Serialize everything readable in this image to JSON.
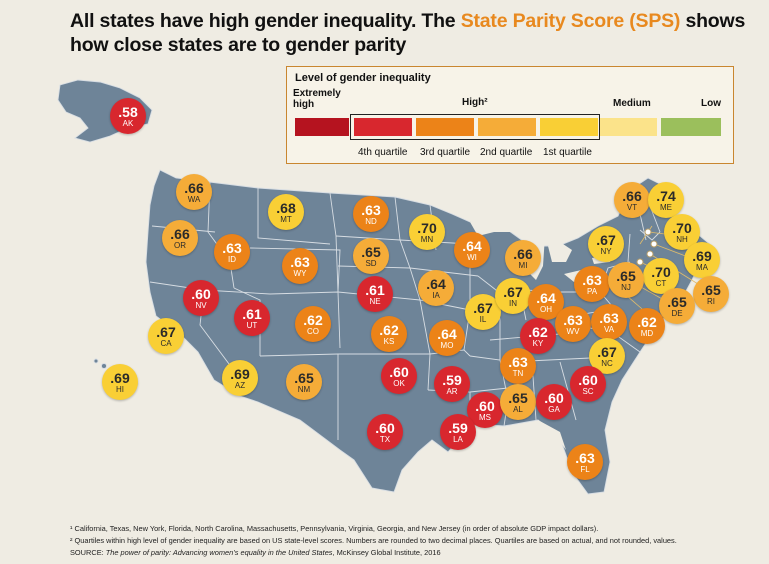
{
  "title": {
    "part1": "All states have high gender inequality. The ",
    "highlight": "State Parity Score (SPS)",
    "part2": " shows",
    "line2": "how close states are to gender parity"
  },
  "legend": {
    "title": "Level of gender inequality",
    "extremely_high": "Extremely high",
    "high": "High²",
    "medium": "Medium",
    "low": "Low",
    "quartiles": [
      "4th quartile",
      "3rd quartile",
      "2nd quartile",
      "1st quartile"
    ],
    "colors": {
      "extremely_high": "#b5131f",
      "q4": "#d8272e",
      "q3": "#ec8318",
      "q2": "#f5ac38",
      "q1": "#f9cf35",
      "medium": "#fbe38a",
      "low": "#9bbf5c"
    }
  },
  "states": [
    {
      "abbr": "AK",
      "value": ".58",
      "level": "red"
    },
    {
      "abbr": "WA",
      "value": ".66",
      "level": "lorange"
    },
    {
      "abbr": "OR",
      "value": ".66",
      "level": "lorange"
    },
    {
      "abbr": "MT",
      "value": ".68",
      "level": "yellow"
    },
    {
      "abbr": "ID",
      "value": ".63",
      "level": "orange"
    },
    {
      "abbr": "WY",
      "value": ".63",
      "level": "orange"
    },
    {
      "abbr": "ND",
      "value": ".63",
      "level": "orange"
    },
    {
      "abbr": "SD",
      "value": ".65",
      "level": "lorange"
    },
    {
      "abbr": "MN",
      "value": ".70",
      "level": "yellow"
    },
    {
      "abbr": "WI",
      "value": ".64",
      "level": "orange"
    },
    {
      "abbr": "MI",
      "value": ".66",
      "level": "lorange"
    },
    {
      "abbr": "NV",
      "value": ".60",
      "level": "red"
    },
    {
      "abbr": "UT",
      "value": ".61",
      "level": "red"
    },
    {
      "abbr": "NE",
      "value": ".61",
      "level": "red"
    },
    {
      "abbr": "IA",
      "value": ".64",
      "level": "lorange"
    },
    {
      "abbr": "IL",
      "value": ".67",
      "level": "yellow"
    },
    {
      "abbr": "IN",
      "value": ".67",
      "level": "yellow"
    },
    {
      "abbr": "OH",
      "value": ".64",
      "level": "orange"
    },
    {
      "abbr": "PA",
      "value": ".63",
      "level": "orange"
    },
    {
      "abbr": "NY",
      "value": ".67",
      "level": "yellow"
    },
    {
      "abbr": "VT",
      "value": ".66",
      "level": "lorange"
    },
    {
      "abbr": "ME",
      "value": ".74",
      "level": "yellow"
    },
    {
      "abbr": "NH",
      "value": ".70",
      "level": "yellow"
    },
    {
      "abbr": "MA",
      "value": ".69",
      "level": "yellow"
    },
    {
      "abbr": "RI",
      "value": ".65",
      "level": "lorange"
    },
    {
      "abbr": "CT",
      "value": ".70",
      "level": "yellow"
    },
    {
      "abbr": "NJ",
      "value": ".65",
      "level": "lorange"
    },
    {
      "abbr": "DE",
      "value": ".65",
      "level": "lorange"
    },
    {
      "abbr": "MD",
      "value": ".62",
      "level": "orange"
    },
    {
      "abbr": "CA",
      "value": ".67",
      "level": "yellow"
    },
    {
      "abbr": "CO",
      "value": ".62",
      "level": "orange"
    },
    {
      "abbr": "KS",
      "value": ".62",
      "level": "orange"
    },
    {
      "abbr": "MO",
      "value": ".64",
      "level": "orange"
    },
    {
      "abbr": "KY",
      "value": ".62",
      "level": "red"
    },
    {
      "abbr": "WV",
      "value": ".63",
      "level": "orange"
    },
    {
      "abbr": "VA",
      "value": ".63",
      "level": "orange"
    },
    {
      "abbr": "NC",
      "value": ".67",
      "level": "yellow"
    },
    {
      "abbr": "HI",
      "value": ".69",
      "level": "yellow"
    },
    {
      "abbr": "AZ",
      "value": ".69",
      "level": "yellow"
    },
    {
      "abbr": "NM",
      "value": ".65",
      "level": "lorange"
    },
    {
      "abbr": "OK",
      "value": ".60",
      "level": "red"
    },
    {
      "abbr": "AR",
      "value": ".59",
      "level": "red"
    },
    {
      "abbr": "TN",
      "value": ".63",
      "level": "orange"
    },
    {
      "abbr": "SC",
      "value": ".60",
      "level": "red"
    },
    {
      "abbr": "TX",
      "value": ".60",
      "level": "red"
    },
    {
      "abbr": "MS",
      "value": ".60",
      "level": "red"
    },
    {
      "abbr": "AL",
      "value": ".65",
      "level": "lorange"
    },
    {
      "abbr": "GA",
      "value": ".60",
      "level": "red"
    },
    {
      "abbr": "LA",
      "value": ".59",
      "level": "red"
    },
    {
      "abbr": "FL",
      "value": ".63",
      "level": "orange"
    }
  ],
  "footnotes": {
    "note1": "¹ California, Texas, New York, Florida, North Carolina, Massachusetts, Pennsylvania, Virginia, Georgia, and New Jersey (in order of absolute GDP impact dollars).",
    "note2": "² Quartiles within high level of gender inequality are based on US state-level scores. Numbers are rounded to two decimal places. Quartiles are based on actual, and not rounded, values.",
    "source_label": "SOURCE: ",
    "source_title": "The power of parity: Advancing women’s equality in the United States",
    "source_rest": ", McKinsey Global Institute, 2016"
  },
  "map_colors": {
    "land": "#6e8498",
    "border": "#d7dde3",
    "background": "#efece3"
  }
}
